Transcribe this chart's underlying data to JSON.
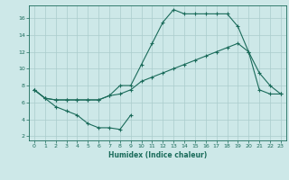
{
  "xlabel": "Humidex (Indice chaleur)",
  "bg_color": "#cde8e8",
  "grid_color": "#aacccc",
  "line_color": "#1a6b5a",
  "xlim": [
    -0.5,
    23.5
  ],
  "ylim": [
    1.5,
    17.5
  ],
  "yticks": [
    2,
    4,
    6,
    8,
    10,
    12,
    14,
    16
  ],
  "xticks": [
    0,
    1,
    2,
    3,
    4,
    5,
    6,
    7,
    8,
    9,
    10,
    11,
    12,
    13,
    14,
    15,
    16,
    17,
    18,
    19,
    20,
    21,
    22,
    23
  ],
  "line1_x": [
    0,
    1,
    2,
    3,
    4,
    5,
    6,
    7,
    8,
    9
  ],
  "line1_y": [
    7.5,
    6.5,
    5.5,
    5.0,
    4.5,
    3.5,
    3.0,
    3.0,
    2.8,
    4.5
  ],
  "line2_x": [
    0,
    1,
    2,
    3,
    4,
    5,
    6,
    7,
    8,
    9,
    10,
    11,
    12,
    13,
    14,
    15,
    16,
    17,
    18,
    19,
    20,
    21,
    22,
    23
  ],
  "line2_y": [
    7.5,
    6.5,
    6.3,
    6.3,
    6.3,
    6.3,
    6.3,
    6.8,
    7.0,
    7.5,
    8.5,
    9.0,
    9.5,
    10.0,
    10.5,
    11.0,
    11.5,
    12.0,
    12.5,
    13.0,
    12.0,
    7.5,
    7.0,
    7.0
  ],
  "line3_x": [
    0,
    1,
    2,
    3,
    4,
    5,
    6,
    7,
    8,
    9,
    10,
    11,
    12,
    13,
    14,
    15,
    16,
    17,
    18,
    19,
    20,
    21,
    22,
    23
  ],
  "line3_y": [
    7.5,
    6.5,
    6.3,
    6.3,
    6.3,
    6.3,
    6.3,
    6.8,
    8.0,
    8.0,
    10.5,
    13.0,
    15.5,
    17.0,
    16.5,
    16.5,
    16.5,
    16.5,
    16.5,
    15.0,
    12.0,
    9.5,
    8.0,
    7.0
  ]
}
